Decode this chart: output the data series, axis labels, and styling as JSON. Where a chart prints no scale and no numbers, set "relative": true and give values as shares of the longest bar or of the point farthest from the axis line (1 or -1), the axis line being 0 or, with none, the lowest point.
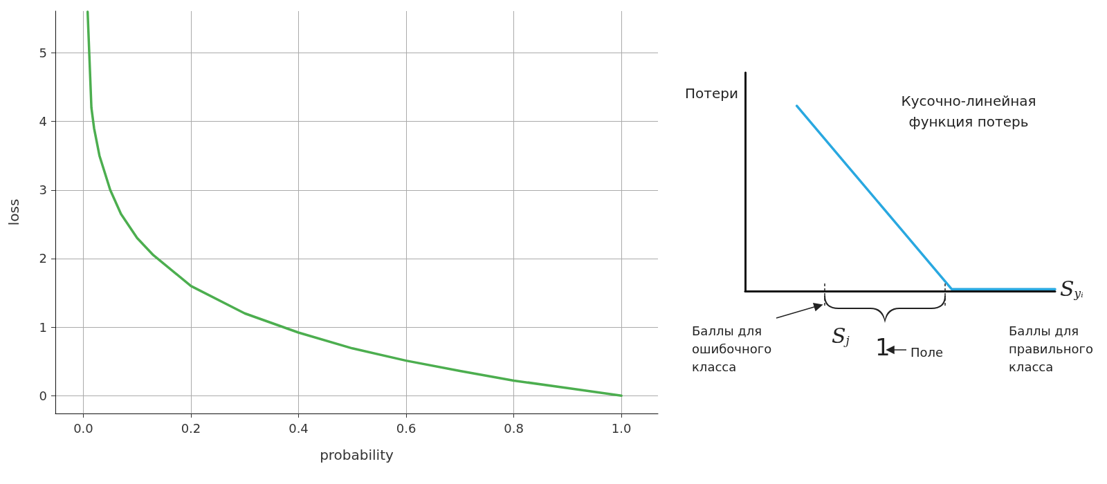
{
  "chart_data": [
    {
      "type": "line",
      "xlabel": "probability",
      "ylabel": "loss",
      "xlim": [
        -0.052,
        1.068
      ],
      "ylim": [
        -0.26,
        5.61
      ],
      "xticks": [
        {
          "value": 0,
          "label": "0.0"
        },
        {
          "value": 0.2,
          "label": "0.2"
        },
        {
          "value": 0.4,
          "label": "0.4"
        },
        {
          "value": 0.6,
          "label": "0.6"
        },
        {
          "value": 0.8,
          "label": "0.8"
        },
        {
          "value": 1,
          "label": "1.0"
        }
      ],
      "yticks": [
        0,
        1,
        2,
        3,
        4,
        5
      ],
      "grid": true,
      "marker": "none",
      "line_style": "solid",
      "series": [
        {
          "color": "#4cae4f",
          "x": [
            0.008,
            0.015,
            0.02,
            0.03,
            0.05,
            0.07,
            0.1,
            0.13,
            0.2,
            0.3,
            0.4,
            0.5,
            0.6,
            0.7,
            0.8,
            0.9,
            1.0
          ],
          "values": [
            5.6,
            4.2,
            3.9,
            3.5,
            3.0,
            2.65,
            2.3,
            2.05,
            1.6,
            1.2,
            0.92,
            0.69,
            0.51,
            0.36,
            0.22,
            0.11,
            0
          ]
        }
      ]
    },
    {
      "type": "line",
      "title": "Кусочно-линейная функция потерь",
      "ylabel": "Потери",
      "relative": true,
      "categories": [
        null,
        null,
        null,
        null,
        null,
        null,
        null
      ],
      "tick_labels": false,
      "grid": false,
      "marker": "none",
      "line_style": "solid",
      "annotations": [
        "Баллы для\nошибочного\nкласса",
        "Баллы для\nправильного\nкласса",
        "S$_{j}$",
        "1",
        "Поле",
        "S$_{yᵢ}$"
      ],
      "series": [
        {
          "color": "#29a8e0",
          "values": [
            null,
            1,
            0.67,
            0.34,
            0.01,
            0.01,
            0.01
          ]
        }
      ]
    }
  ]
}
